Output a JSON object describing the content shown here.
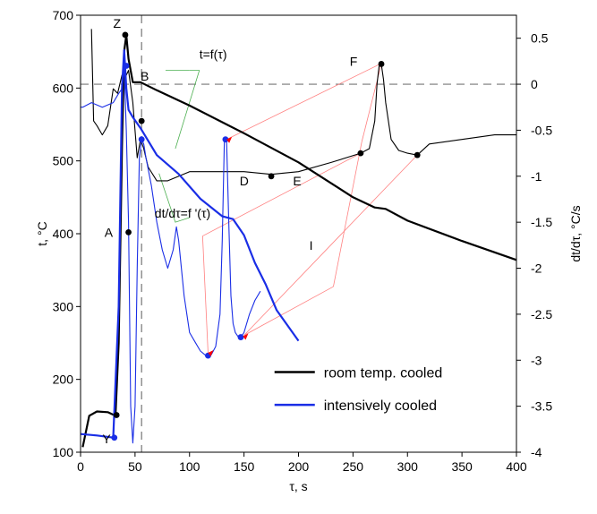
{
  "chart_data": {
    "type": "line",
    "xlabel": "τ, s",
    "ylabel_left": "t, °C",
    "ylabel_right": "dt/dτ, °C/s",
    "xlim": [
      0,
      400
    ],
    "ylim_left": [
      100,
      700
    ],
    "ylim_right": [
      -4,
      0.75
    ],
    "x_ticks": [
      "0",
      "50",
      "100",
      "150",
      "200",
      "250",
      "300",
      "350",
      "400"
    ],
    "y_left_ticks": [
      "100",
      "200",
      "300",
      "400",
      "500",
      "600",
      "700"
    ],
    "y_right_ticks": [
      "-4",
      "-3.5",
      "-3",
      "-2.5",
      "-2",
      "-1.5",
      "-1",
      "-0.5",
      "0",
      "0.5"
    ],
    "reference_lines": {
      "dashed_horizontal_right_value": 0,
      "dashed_vertical_x": 56
    },
    "annotations": {
      "Z": "Z",
      "B": "B",
      "A": "A",
      "Y": "Y",
      "D": "D",
      "E": "E",
      "F": "F",
      "I": "I",
      "t_label": "t=f(τ)",
      "dt_label": "dt/dτ=f '(τ)"
    },
    "legend": {
      "position": "lower-right",
      "entries": [
        {
          "label": "room temp. cooled",
          "color": "#000000"
        },
        {
          "label": "intensively cooled",
          "color": "#1a2ee6"
        }
      ]
    },
    "series": [
      {
        "name": "room temp. cooled",
        "kind": "temperature",
        "axis": "left",
        "color": "#000000",
        "x": [
          2,
          8,
          15,
          25,
          32,
          35,
          38,
          40,
          42,
          44,
          48,
          55,
          70,
          100,
          150,
          200,
          250,
          270,
          280,
          300,
          350,
          400
        ],
        "y": [
          107,
          150,
          156,
          155,
          150,
          250,
          520,
          650,
          673,
          640,
          608,
          608,
          597,
          576,
          538,
          498,
          450,
          436,
          434,
          418,
          390,
          364
        ]
      },
      {
        "name": "room temp. cooled",
        "kind": "cooling_rate",
        "axis": "right",
        "color": "#000000",
        "x": [
          10,
          12,
          15,
          20,
          25,
          30,
          34,
          38,
          40,
          44,
          48,
          52,
          55,
          58,
          62,
          70,
          80,
          100,
          120,
          150,
          175,
          200,
          230,
          257,
          265,
          270,
          272,
          274,
          276,
          278,
          280,
          285,
          292,
          300,
          309,
          320,
          350,
          380,
          400
        ],
        "y": [
          0.6,
          -0.4,
          -0.45,
          -0.55,
          -0.45,
          -0.05,
          -0.1,
          0.1,
          0.05,
          0.15,
          -0.2,
          -0.8,
          -0.6,
          -0.7,
          -0.9,
          -1.05,
          -1.05,
          -0.95,
          -0.95,
          -0.95,
          -0.98,
          -0.95,
          -0.85,
          -0.75,
          -0.7,
          -0.4,
          0.0,
          0.2,
          0.22,
          0.05,
          -0.2,
          -0.6,
          -0.72,
          -0.75,
          -0.77,
          -0.65,
          -0.6,
          -0.55,
          -0.55
        ]
      },
      {
        "name": "intensively cooled",
        "kind": "temperature",
        "axis": "left",
        "color": "#1a2ee6",
        "x": [
          0,
          15,
          30,
          35,
          38,
          40,
          42,
          44,
          48,
          55,
          70,
          90,
          110,
          130,
          140,
          150,
          160,
          170,
          180,
          200
        ],
        "y": [
          125,
          123,
          120,
          300,
          600,
          652,
          600,
          570,
          560,
          545,
          508,
          482,
          448,
          424,
          420,
          398,
          360,
          330,
          295,
          253
        ]
      },
      {
        "name": "intensively cooled",
        "kind": "cooling_rate",
        "axis": "right",
        "color": "#1a2ee6",
        "x": [
          0,
          2,
          10,
          20,
          30,
          35,
          38,
          40,
          42,
          44,
          46,
          48,
          50,
          52,
          54,
          56,
          58,
          60,
          65,
          70,
          75,
          80,
          85,
          88,
          90,
          95,
          100,
          105,
          110,
          115,
          118,
          120,
          124,
          128,
          130,
          132,
          134,
          136,
          138,
          140,
          142,
          145,
          147,
          150,
          155,
          160,
          165
        ],
        "y": [
          -0.25,
          -0.25,
          -0.2,
          -0.25,
          -0.2,
          -0.1,
          -0.05,
          0.2,
          -0.5,
          -1.5,
          -3.5,
          -3.9,
          -3.5,
          -2.0,
          -0.8,
          -0.6,
          -0.65,
          -0.8,
          -1.1,
          -1.5,
          -1.8,
          -2.0,
          -1.8,
          -1.55,
          -1.7,
          -2.3,
          -2.7,
          -2.8,
          -2.9,
          -2.95,
          -2.95,
          -2.94,
          -2.85,
          -2.5,
          -1.7,
          -0.6,
          -0.6,
          -1.5,
          -2.3,
          -2.6,
          -2.7,
          -2.75,
          -2.75,
          -2.7,
          -2.5,
          -2.35,
          -2.25
        ]
      }
    ],
    "markers": [
      {
        "label": "Z",
        "axis": "left",
        "x": 41,
        "y": 673,
        "color": "#000000"
      },
      {
        "label": "A",
        "axis": "left",
        "x": 44,
        "y": 402,
        "color": "#000000"
      },
      {
        "label": "Y_black",
        "axis": "left",
        "x": 33,
        "y": 151,
        "color": "#000000"
      },
      {
        "label": "B_blue",
        "axis": "right",
        "x": 42,
        "y": 0.2,
        "color": "#1a2ee6"
      },
      {
        "label": "rate_peak_black",
        "axis": "right",
        "x": 56,
        "y": -0.4,
        "color": "#000000"
      },
      {
        "label": "rate_peak_blue",
        "axis": "right",
        "x": 56,
        "y": -0.6,
        "color": "#1a2ee6"
      },
      {
        "label": "Y_blue",
        "axis": "left",
        "x": 31,
        "y": 120,
        "color": "#1a2ee6"
      },
      {
        "label": "D",
        "axis": "right",
        "x": 175,
        "y": -1.0,
        "color": "#000000"
      },
      {
        "label": "E",
        "axis": "right",
        "x": 257,
        "y": -0.75,
        "color": "#000000"
      },
      {
        "label": "F",
        "axis": "right",
        "x": 276,
        "y": 0.22,
        "color": "#000000"
      },
      {
        "label": "after_F",
        "axis": "right",
        "x": 309,
        "y": -0.77,
        "color": "#000000"
      },
      {
        "label": "blue_min1",
        "axis": "right",
        "x": 117,
        "y": -2.95,
        "color": "#1a2ee6"
      },
      {
        "label": "blue_max2",
        "axis": "right",
        "x": 133,
        "y": -0.6,
        "color": "#1a2ee6"
      },
      {
        "label": "blue_min2",
        "axis": "right",
        "x": 147,
        "y": -2.75,
        "color": "#1a2ee6"
      }
    ]
  }
}
